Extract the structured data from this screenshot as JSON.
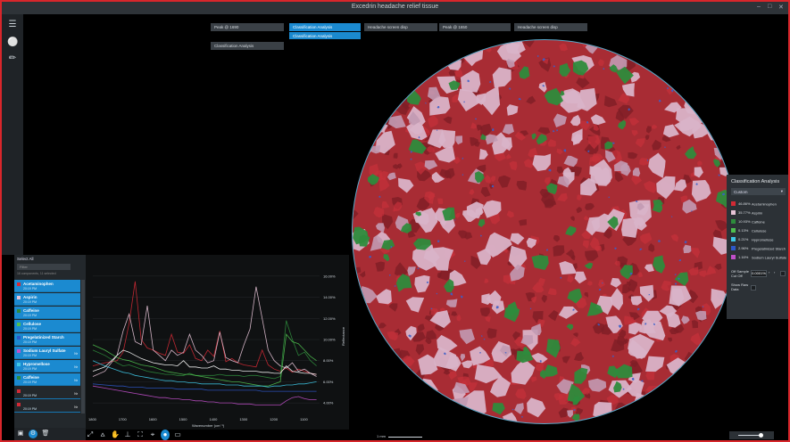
{
  "window": {
    "title": "Excedrin headache relief tissue",
    "controls": [
      "–",
      "□",
      "✕"
    ]
  },
  "toolbar_left": {
    "icons": [
      "menu-icon",
      "droplet-icon",
      "ruler-icon"
    ]
  },
  "tabs": [
    {
      "label": "Peak @ 1690",
      "active": false
    },
    {
      "label": "Classification Analysis",
      "active": true
    },
    {
      "label": "Headache screen disp",
      "active": false
    },
    {
      "label": "Peak @ 1650",
      "active": false
    },
    {
      "label": "Headache screen disp",
      "active": false
    }
  ],
  "tab_sub": {
    "label": "Classification Analysis"
  },
  "tab_row2": {
    "label": "Classification Analysis"
  },
  "classification": {
    "title": "Classification Analysis",
    "select_value": "Custom",
    "rows": [
      {
        "pct": "46.86%",
        "name": "Acetaminophen",
        "color": "#d22a35"
      },
      {
        "pct": "35.77%",
        "name": "Aspirin",
        "color": "#e6c3d6"
      },
      {
        "pct": "10.93%",
        "name": "Caffeine",
        "color": "#2e8b3c"
      },
      {
        "pct": "0.13%",
        "name": "Cellulose",
        "color": "#4fbf4f"
      },
      {
        "pct": "0.21%",
        "name": "Hypromellose",
        "color": "#3ec7e6"
      },
      {
        "pct": "2.96%",
        "name": "Pregelatinized Starch",
        "color": "#2d58c9"
      },
      {
        "pct": "1.16%",
        "name": "Sodium Lauryl Sulfate",
        "color": "#c04fc9"
      }
    ],
    "cutoff_label": "Off Sample Cut Off",
    "cutoff_value": "0.0001%",
    "show_raw_label": "Show Raw Data"
  },
  "components": {
    "header": "Select All",
    "filter_placeholder": "Filter",
    "filter_note": "16 components, 11 selected",
    "items": [
      {
        "name": "Acetaminophen",
        "sub": "20:19 PM",
        "nr": "",
        "color": "#d22a35"
      },
      {
        "name": "Aspirin",
        "sub": "20:19 PM",
        "nr": "",
        "color": "#e6c3d6"
      },
      {
        "name": "Caffeine",
        "sub": "20:19 PM",
        "nr": "",
        "color": "#2e8b3c"
      },
      {
        "name": "Cellulose",
        "sub": "20:19 PM",
        "nr": "",
        "color": "#4fbf4f"
      },
      {
        "name": "Pregelatinized Starch",
        "sub": "20:19 PM",
        "nr": "",
        "color": "#2d58c9"
      },
      {
        "name": "Sodium Lauryl Sulfate",
        "sub": "20:19 PM",
        "nr": "Nr",
        "color": "#c04fc9"
      },
      {
        "name": "Hypromellose",
        "sub": "20:19 PM",
        "nr": "Nr",
        "color": "#3ec7e6"
      },
      {
        "name": "Caffeine",
        "sub": "20:19 PM",
        "nr": "Nr",
        "color": "#2e8b3c"
      },
      {
        "name": "",
        "sub": "20:19 PM",
        "nr": "Nr",
        "color": "#d22a35"
      },
      {
        "name": "",
        "sub": "20:19 PM",
        "nr": "Nr",
        "color": "#d22a35"
      }
    ]
  },
  "chart_data": {
    "type": "line",
    "xlabel": "Wavenumber (cm⁻¹)",
    "ylabel": "Reflectance",
    "x_ticks": [
      "1800",
      "1700",
      "1600",
      "1500",
      "1400",
      "1300",
      "1200",
      "1100"
    ],
    "y_ticks": [
      "16.00%",
      "14.00%",
      "12.00%",
      "10.00%",
      "8.00%",
      "6.00%",
      "4.00%"
    ],
    "xlim": [
      1800,
      1050
    ],
    "ylim": [
      3.0,
      17.0
    ],
    "x": [
      1800,
      1760,
      1720,
      1700,
      1680,
      1660,
      1640,
      1620,
      1600,
      1580,
      1560,
      1540,
      1520,
      1500,
      1480,
      1460,
      1440,
      1420,
      1400,
      1380,
      1360,
      1340,
      1320,
      1300,
      1280,
      1260,
      1240,
      1220,
      1200,
      1180,
      1160,
      1140,
      1120,
      1100,
      1080,
      1060
    ],
    "series": [
      {
        "color": "#d22a35",
        "values": [
          7.5,
          7.8,
          8.0,
          8.8,
          11.5,
          15.5,
          10.0,
          9.2,
          9.0,
          8.7,
          8.5,
          10.5,
          8.8,
          8.7,
          9.5,
          8.2,
          8.0,
          9.0,
          8.4,
          10.8,
          7.9,
          8.2,
          7.8,
          7.6,
          7.5,
          7.4,
          9.0,
          7.6,
          7.2,
          7.0,
          7.3,
          6.9,
          7.2,
          7.0,
          6.8,
          6.7
        ]
      },
      {
        "color": "#e6c3d6",
        "values": [
          6.5,
          7.0,
          8.5,
          10.8,
          12.4,
          9.8,
          9.5,
          13.2,
          9.0,
          8.5,
          8.0,
          9.0,
          8.5,
          8.8,
          10.5,
          9.0,
          8.5,
          7.8,
          8.0,
          10.7,
          8.3,
          8.0,
          7.8,
          9.5,
          11.0,
          15.0,
          12.0,
          9.0,
          8.0,
          7.5,
          7.3,
          7.8,
          7.0,
          7.2,
          6.8,
          6.5
        ]
      },
      {
        "color": "#2e8b3c",
        "values": [
          9.0,
          8.5,
          7.8,
          7.5,
          7.6,
          7.4,
          7.2,
          7.0,
          6.9,
          6.8,
          6.7,
          6.7,
          6.6,
          6.6,
          6.8,
          6.6,
          6.6,
          6.6,
          6.6,
          6.7,
          6.6,
          6.6,
          6.6,
          6.5,
          6.6,
          6.6,
          6.5,
          6.4,
          6.3,
          6.5,
          11.8,
          10.0,
          8.5,
          8.8,
          8.0,
          7.5
        ]
      },
      {
        "color": "#4fbf4f",
        "values": [
          9.5,
          9.0,
          8.3,
          8.1,
          8.0,
          7.8,
          7.6,
          7.5,
          7.4,
          7.2,
          7.0,
          6.9,
          6.8,
          6.7,
          6.7,
          6.6,
          6.5,
          6.4,
          6.3,
          6.2,
          6.1,
          6.0,
          6.0,
          5.9,
          5.8,
          5.7,
          5.6,
          5.6,
          5.8,
          6.0,
          10.5,
          9.8,
          9.6,
          9.0,
          8.4,
          8.0
        ]
      },
      {
        "color": "#3ec7e6",
        "values": [
          8.0,
          7.5,
          7.1,
          6.9,
          6.8,
          6.6,
          6.5,
          6.4,
          6.3,
          6.2,
          6.1,
          6.1,
          6.0,
          6.0,
          5.9,
          5.9,
          5.8,
          5.8,
          5.8,
          5.8,
          5.7,
          5.7,
          5.7,
          5.6,
          5.6,
          5.6,
          5.6,
          5.5,
          5.6,
          5.6,
          5.7,
          5.7,
          5.8,
          5.8,
          5.9,
          6.0
        ]
      },
      {
        "color": "#2d58c9",
        "values": [
          5.8,
          5.7,
          5.6,
          5.6,
          5.5,
          5.5,
          5.5,
          5.4,
          5.4,
          5.4,
          5.4,
          5.4,
          5.3,
          5.3,
          5.3,
          5.3,
          5.3,
          5.2,
          5.2,
          5.2,
          5.2,
          5.2,
          5.2,
          5.2,
          5.2,
          5.2,
          5.1,
          5.1,
          5.1,
          5.1,
          5.1,
          5.1,
          5.1,
          5.1,
          5.1,
          5.1
        ]
      },
      {
        "color": "#c04fc9",
        "values": [
          5.6,
          5.4,
          5.2,
          5.1,
          5.0,
          4.9,
          4.8,
          4.7,
          4.6,
          4.5,
          4.5,
          4.4,
          4.4,
          4.3,
          4.3,
          4.2,
          4.2,
          4.1,
          4.1,
          4.0,
          4.0,
          4.0,
          3.9,
          3.9,
          3.9,
          3.8,
          3.8,
          3.8,
          3.8,
          3.8,
          4.2,
          4.5,
          4.6,
          4.4,
          4.3,
          4.3
        ]
      },
      {
        "color": "#ffffff",
        "values": [
          7.0,
          7.4,
          8.5,
          9.0,
          8.8,
          8.5,
          8.2,
          8.0,
          7.8,
          7.7,
          7.6,
          7.6,
          7.5,
          8.0,
          7.4,
          7.4,
          7.3,
          7.3,
          7.5,
          7.2,
          7.2,
          7.1,
          7.1,
          7.0,
          7.0,
          7.0,
          6.9,
          6.9,
          6.8,
          6.8,
          7.5,
          7.0,
          6.9,
          6.8,
          6.8,
          6.7
        ]
      }
    ]
  },
  "bottom_tools": [
    "crosshair-icon",
    "peak-icon",
    "hand-icon",
    "baseline-icon",
    "fit-icon",
    "cursor-icon",
    "active-tool-icon",
    "camera-icon"
  ],
  "left_bottom_icons": [
    "save-icon",
    "settings-icon",
    "trash-icon"
  ],
  "scale": {
    "label": "1 mm"
  }
}
